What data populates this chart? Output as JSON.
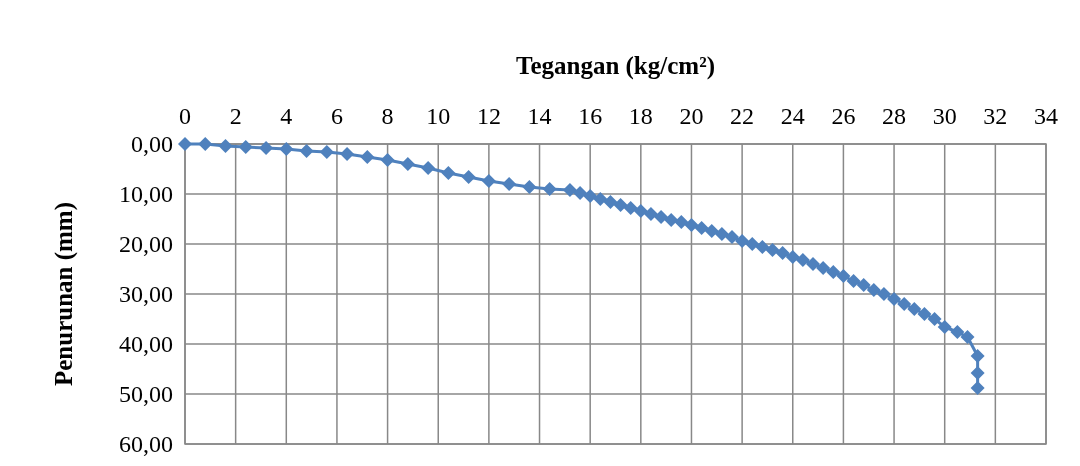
{
  "chart_data": {
    "type": "line",
    "xlabel": "Tegangan (kg/cm²)",
    "ylabel": "Penurunan (mm)",
    "marker": "diamond",
    "grid": true,
    "xlim": [
      0,
      34
    ],
    "xticks": [
      0,
      2,
      4,
      6,
      8,
      10,
      12,
      14,
      16,
      18,
      20,
      22,
      24,
      26,
      28,
      30,
      32,
      34
    ],
    "ylim": [
      60,
      0
    ],
    "yticks": [
      {
        "value": 0,
        "label": "0,00"
      },
      {
        "value": 10,
        "label": "10,00"
      },
      {
        "value": 20,
        "label": "20,00"
      },
      {
        "value": 30,
        "label": "30,00"
      },
      {
        "value": 40,
        "label": "40,00"
      },
      {
        "value": 50,
        "label": "50,00"
      },
      {
        "value": 60,
        "label": "60,00"
      }
    ],
    "series": [
      {
        "color": "#4f81bd",
        "x": [
          0,
          0.8,
          1.6,
          2.4,
          3.2,
          4,
          4.8,
          5.6,
          6.4,
          7.2,
          8,
          8.8,
          9.6,
          10.4,
          11.2,
          12,
          12.8,
          13.6,
          14.4,
          15.2,
          15.6,
          16,
          16.4,
          16.8,
          17.2,
          17.6,
          18,
          18.4,
          18.8,
          19.2,
          19.6,
          20,
          20.4,
          20.8,
          21.2,
          21.6,
          22,
          22.4,
          22.8,
          23.2,
          23.6,
          24,
          24.4,
          24.8,
          25.2,
          25.6,
          26,
          26.4,
          26.8,
          27.2,
          27.6,
          28,
          28.4,
          28.8,
          29.2,
          29.6,
          30,
          30.5,
          30.9,
          31.3,
          31.3,
          31.3
        ],
        "values": [
          0,
          0,
          0.4,
          0.6,
          0.8,
          1,
          1.4,
          1.6,
          2,
          2.6,
          3.2,
          4,
          4.8,
          5.8,
          6.6,
          7.4,
          8,
          8.6,
          9,
          9.2,
          9.8,
          10.4,
          11,
          11.6,
          12.2,
          12.8,
          13.4,
          14,
          14.6,
          15.2,
          15.6,
          16.2,
          16.8,
          17.4,
          18,
          18.6,
          19.4,
          20,
          20.6,
          21.2,
          21.8,
          22.6,
          23.2,
          24,
          24.8,
          25.6,
          26.4,
          27.4,
          28.2,
          29.2,
          30,
          31,
          32,
          33,
          34,
          35,
          36.6,
          37.6,
          38.6,
          42.4,
          45.8,
          48.8
        ]
      }
    ]
  }
}
